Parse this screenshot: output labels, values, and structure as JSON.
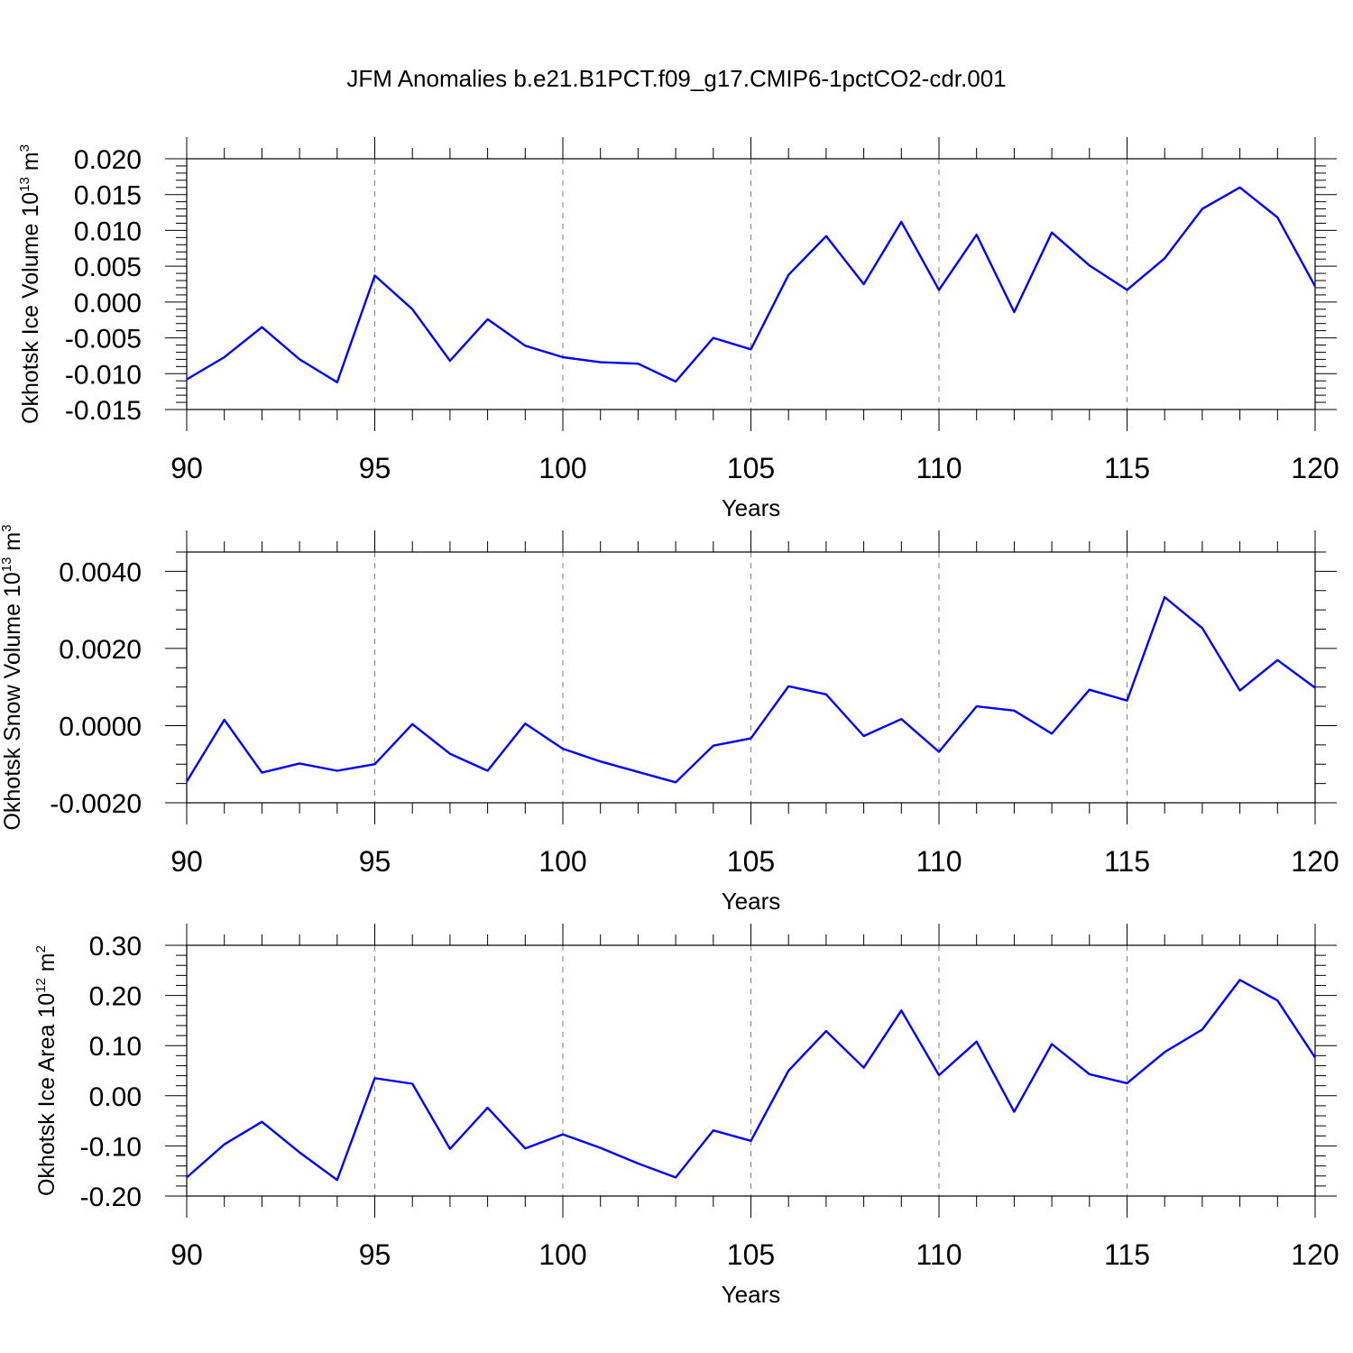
{
  "title": "JFM Anomalies b.e21.B1PCT.f09_g17.CMIP6-1pctCO2-cdr.001",
  "colors": {
    "line": "#0000ff",
    "axis": "#000000",
    "grid": "#808080"
  },
  "chart_data": [
    {
      "type": "line",
      "ylabel": "Okhotsk Ice Volume 10",
      "ylabel_exp": "13",
      "ylabel_unit": " m",
      "ylabel_unit_exp": "3",
      "xlabel": "Years",
      "xlim": [
        90,
        120
      ],
      "ylim": [
        -0.015,
        0.02
      ],
      "xticks": [
        90,
        95,
        100,
        105,
        110,
        115,
        120
      ],
      "yticks": [
        -0.015,
        -0.01,
        -0.005,
        0.0,
        0.005,
        0.01,
        0.015,
        0.02
      ],
      "ytick_labels": [
        "-0.015",
        "-0.010",
        "-0.005",
        "0.000",
        "0.005",
        "0.010",
        "0.015",
        "0.020"
      ],
      "yminor_step": 0.001,
      "grid": "vertical dashed",
      "x": [
        90,
        91,
        92,
        93,
        94,
        95,
        96,
        97,
        98,
        99,
        100,
        101,
        102,
        103,
        104,
        105,
        106,
        107,
        108,
        109,
        110,
        111,
        112,
        113,
        114,
        115,
        116,
        117,
        118,
        119,
        120
      ],
      "y": [
        -0.0108,
        -0.0077,
        -0.0035,
        -0.008,
        -0.0112,
        0.0037,
        -0.001,
        -0.0082,
        -0.0024,
        -0.0061,
        -0.0077,
        -0.0084,
        -0.0086,
        -0.0111,
        -0.005,
        -0.0066,
        0.0038,
        0.0092,
        0.0025,
        0.0112,
        0.0017,
        0.0094,
        -0.0014,
        0.0097,
        0.0051,
        0.0017,
        0.0061,
        0.013,
        0.016,
        0.0118,
        0.0022
      ]
    },
    {
      "type": "line",
      "ylabel": "Okhotsk Snow Volume 10",
      "ylabel_exp": "13",
      "ylabel_unit": " m",
      "ylabel_unit_exp": "3",
      "xlabel": "Years",
      "xlim": [
        90,
        120
      ],
      "ylim": [
        -0.002,
        0.0045
      ],
      "xticks": [
        90,
        95,
        100,
        105,
        110,
        115,
        120
      ],
      "yticks": [
        -0.002,
        0.0,
        0.002,
        0.004
      ],
      "ytick_labels": [
        "-0.0020",
        "0.0000",
        "0.0020",
        "0.0040"
      ],
      "yminor_step": 0.0005,
      "grid": "vertical dashed",
      "x": [
        90,
        91,
        92,
        93,
        94,
        95,
        96,
        97,
        98,
        99,
        100,
        101,
        102,
        103,
        104,
        105,
        106,
        107,
        108,
        109,
        110,
        111,
        112,
        113,
        114,
        115,
        116,
        117,
        118,
        119,
        120
      ],
      "y": [
        -0.00145,
        0.00015,
        -0.00122,
        -0.00098,
        -0.00117,
        -0.001,
        4e-05,
        -0.00073,
        -0.00117,
        5e-05,
        -0.0006,
        -0.00093,
        -0.0012,
        -0.00147,
        -0.00052,
        -0.00033,
        0.00102,
        0.00081,
        -0.00027,
        0.00017,
        -0.00068,
        0.0005,
        0.00039,
        -0.00021,
        0.00093,
        0.00065,
        0.00333,
        0.00253,
        0.00091,
        0.0017,
        0.00098
      ]
    },
    {
      "type": "line",
      "ylabel": "Okhotsk Ice Area 10",
      "ylabel_exp": "12",
      "ylabel_unit": " m",
      "ylabel_unit_exp": "2",
      "xlabel": "Years",
      "xlim": [
        90,
        120
      ],
      "ylim": [
        -0.2,
        0.3
      ],
      "xticks": [
        90,
        95,
        100,
        105,
        110,
        115,
        120
      ],
      "yticks": [
        -0.2,
        -0.1,
        0.0,
        0.1,
        0.2,
        0.3
      ],
      "ytick_labels": [
        "-0.20",
        "-0.10",
        "0.00",
        "0.10",
        "0.20",
        "0.30"
      ],
      "yminor_step": 0.02,
      "grid": "vertical dashed",
      "x": [
        90,
        91,
        92,
        93,
        94,
        95,
        96,
        97,
        98,
        99,
        100,
        101,
        102,
        103,
        104,
        105,
        106,
        107,
        108,
        109,
        110,
        111,
        112,
        113,
        114,
        115,
        116,
        117,
        118,
        119,
        120
      ],
      "y": [
        -0.163,
        -0.097,
        -0.052,
        -0.113,
        -0.168,
        0.035,
        0.024,
        -0.106,
        -0.024,
        -0.105,
        -0.077,
        -0.104,
        -0.135,
        -0.163,
        -0.069,
        -0.09,
        0.05,
        0.129,
        0.056,
        0.17,
        0.041,
        0.108,
        -0.032,
        0.103,
        0.043,
        0.025,
        0.087,
        0.132,
        0.231,
        0.19,
        0.076
      ]
    }
  ]
}
